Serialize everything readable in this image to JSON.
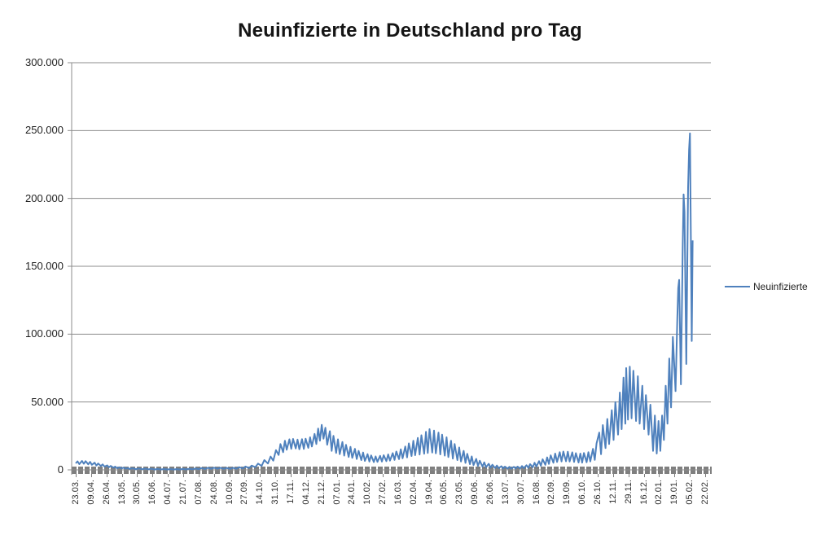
{
  "title": "Neuinfizierte in Deutschland pro Tag",
  "legend": {
    "label": "Neuinfizierte"
  },
  "chart_data": {
    "type": "line",
    "title": "Neuinfizierte in Deutschland pro Tag",
    "xlabel": "",
    "ylabel": "",
    "grid": "horizontal",
    "legend_position": "right",
    "series_name": "Neuinfizierte",
    "series_color": "#4F81BD",
    "gridline_color": "#8C8C8C",
    "axis_color": "#8C8C8C",
    "tick_band_color": "#7f7f7f",
    "ylim": [
      0,
      300000
    ],
    "y_tick_step": 50000,
    "y_tick_labels": [
      "300.000",
      "250.000",
      "200.000",
      "150.000",
      "100.000",
      "50.000",
      "0"
    ],
    "x_tick_labels": [
      "23.03.",
      "09.04.",
      "26.04.",
      "13.05.",
      "30.05.",
      "16.06.",
      "04.07.",
      "21.07.",
      "07.08.",
      "24.08.",
      "10.09.",
      "27.09.",
      "14.10.",
      "31.10.",
      "17.11.",
      "04.12.",
      "21.12.",
      "07.01.",
      "24.01.",
      "10.02.",
      "27.02.",
      "16.03.",
      "02.04.",
      "19.04.",
      "06.05.",
      "23.05.",
      "09.06.",
      "26.06.",
      "13.07.",
      "30.07.",
      "16.08.",
      "02.09.",
      "19.09.",
      "06.10.",
      "26.10.",
      "12.11.",
      "29.11.",
      "16.12.",
      "02.01.",
      "19.01.",
      "05.02.",
      "22.02."
    ],
    "x_label_interval_days": 17,
    "x_range_days": [
      0,
      701
    ],
    "points_format": "[day_index_from_23.03.2020, new_infections]",
    "points": [
      [
        0,
        4800
      ],
      [
        2,
        6300
      ],
      [
        4,
        4200
      ],
      [
        7,
        6600
      ],
      [
        9,
        4500
      ],
      [
        11,
        6400
      ],
      [
        14,
        4100
      ],
      [
        16,
        5900
      ],
      [
        18,
        3700
      ],
      [
        21,
        5300
      ],
      [
        23,
        3200
      ],
      [
        25,
        4700
      ],
      [
        28,
        2800
      ],
      [
        30,
        4000
      ],
      [
        32,
        2400
      ],
      [
        35,
        3300
      ],
      [
        37,
        1900
      ],
      [
        39,
        2900
      ],
      [
        42,
        1600
      ],
      [
        44,
        2400
      ],
      [
        46,
        1200
      ],
      [
        49,
        1900
      ],
      [
        51,
        950
      ],
      [
        53,
        1600
      ],
      [
        56,
        850
      ],
      [
        58,
        1350
      ],
      [
        60,
        650
      ],
      [
        63,
        1150
      ],
      [
        67,
        550
      ],
      [
        70,
        1000
      ],
      [
        74,
        480
      ],
      [
        77,
        880
      ],
      [
        81,
        420
      ],
      [
        84,
        800
      ],
      [
        88,
        330
      ],
      [
        91,
        680
      ],
      [
        95,
        320
      ],
      [
        98,
        620
      ],
      [
        102,
        280
      ],
      [
        105,
        540
      ],
      [
        109,
        280
      ],
      [
        112,
        560
      ],
      [
        116,
        330
      ],
      [
        119,
        640
      ],
      [
        123,
        390
      ],
      [
        126,
        780
      ],
      [
        130,
        450
      ],
      [
        133,
        980
      ],
      [
        137,
        560
      ],
      [
        140,
        1300
      ],
      [
        144,
        680
      ],
      [
        147,
        1500
      ],
      [
        151,
        760
      ],
      [
        154,
        1580
      ],
      [
        158,
        820
      ],
      [
        161,
        1500
      ],
      [
        165,
        760
      ],
      [
        168,
        1420
      ],
      [
        172,
        720
      ],
      [
        175,
        1520
      ],
      [
        179,
        830
      ],
      [
        182,
        2000
      ],
      [
        186,
        1050
      ],
      [
        189,
        2450
      ],
      [
        193,
        1400
      ],
      [
        196,
        3100
      ],
      [
        200,
        2000
      ],
      [
        203,
        4600
      ],
      [
        207,
        2900
      ],
      [
        210,
        7200
      ],
      [
        214,
        4700
      ],
      [
        217,
        9800
      ],
      [
        220,
        6800
      ],
      [
        223,
        14500
      ],
      [
        226,
        11000
      ],
      [
        228,
        19000
      ],
      [
        231,
        13000
      ],
      [
        233,
        21500
      ],
      [
        235,
        14800
      ],
      [
        238,
        22500
      ],
      [
        240,
        15500
      ],
      [
        242,
        22800
      ],
      [
        245,
        15800
      ],
      [
        247,
        22300
      ],
      [
        249,
        15200
      ],
      [
        252,
        22600
      ],
      [
        254,
        15400
      ],
      [
        256,
        23000
      ],
      [
        259,
        16200
      ],
      [
        261,
        24000
      ],
      [
        263,
        17200
      ],
      [
        266,
        26500
      ],
      [
        268,
        19000
      ],
      [
        270,
        30500
      ],
      [
        272,
        21500
      ],
      [
        274,
        33200
      ],
      [
        276,
        23000
      ],
      [
        278,
        31000
      ],
      [
        280,
        18500
      ],
      [
        283,
        28500
      ],
      [
        285,
        14000
      ],
      [
        287,
        25000
      ],
      [
        290,
        12500
      ],
      [
        292,
        22500
      ],
      [
        294,
        11500
      ],
      [
        297,
        20500
      ],
      [
        299,
        10500
      ],
      [
        301,
        18500
      ],
      [
        304,
        9500
      ],
      [
        306,
        17000
      ],
      [
        308,
        8800
      ],
      [
        311,
        15500
      ],
      [
        313,
        8000
      ],
      [
        315,
        14000
      ],
      [
        318,
        7200
      ],
      [
        320,
        12800
      ],
      [
        322,
        6600
      ],
      [
        325,
        11600
      ],
      [
        327,
        6100
      ],
      [
        329,
        10600
      ],
      [
        332,
        5700
      ],
      [
        334,
        9900
      ],
      [
        336,
        5900
      ],
      [
        339,
        10300
      ],
      [
        341,
        6100
      ],
      [
        343,
        10800
      ],
      [
        346,
        6400
      ],
      [
        348,
        11400
      ],
      [
        350,
        6800
      ],
      [
        353,
        12300
      ],
      [
        355,
        7300
      ],
      [
        357,
        13500
      ],
      [
        360,
        7900
      ],
      [
        362,
        15200
      ],
      [
        364,
        8500
      ],
      [
        367,
        17200
      ],
      [
        369,
        9200
      ],
      [
        371,
        19500
      ],
      [
        374,
        10200
      ],
      [
        376,
        21500
      ],
      [
        378,
        10800
      ],
      [
        381,
        23500
      ],
      [
        383,
        11300
      ],
      [
        385,
        25500
      ],
      [
        388,
        11900
      ],
      [
        390,
        28000
      ],
      [
        392,
        12400
      ],
      [
        394,
        30000
      ],
      [
        397,
        12700
      ],
      [
        399,
        29000
      ],
      [
        401,
        12200
      ],
      [
        404,
        27500
      ],
      [
        406,
        11400
      ],
      [
        408,
        26000
      ],
      [
        411,
        10500
      ],
      [
        413,
        24000
      ],
      [
        415,
        9400
      ],
      [
        418,
        21500
      ],
      [
        420,
        8300
      ],
      [
        422,
        19000
      ],
      [
        425,
        7200
      ],
      [
        427,
        16500
      ],
      [
        429,
        6100
      ],
      [
        432,
        14000
      ],
      [
        434,
        5100
      ],
      [
        436,
        11800
      ],
      [
        439,
        4200
      ],
      [
        441,
        9900
      ],
      [
        443,
        3500
      ],
      [
        446,
        8100
      ],
      [
        448,
        2900
      ],
      [
        450,
        6700
      ],
      [
        453,
        2400
      ],
      [
        455,
        5500
      ],
      [
        457,
        2000
      ],
      [
        460,
        4500
      ],
      [
        462,
        1700
      ],
      [
        464,
        3800
      ],
      [
        467,
        1400
      ],
      [
        469,
        3200
      ],
      [
        471,
        1200
      ],
      [
        474,
        2700
      ],
      [
        476,
        1050
      ],
      [
        478,
        2400
      ],
      [
        481,
        950
      ],
      [
        483,
        2200
      ],
      [
        485,
        900
      ],
      [
        488,
        2200
      ],
      [
        490,
        950
      ],
      [
        492,
        2400
      ],
      [
        495,
        1050
      ],
      [
        497,
        2800
      ],
      [
        499,
        1250
      ],
      [
        502,
        3400
      ],
      [
        504,
        1550
      ],
      [
        506,
        4200
      ],
      [
        509,
        1950
      ],
      [
        511,
        5200
      ],
      [
        513,
        2450
      ],
      [
        516,
        6400
      ],
      [
        518,
        3000
      ],
      [
        520,
        7800
      ],
      [
        523,
        3700
      ],
      [
        525,
        9200
      ],
      [
        527,
        4400
      ],
      [
        529,
        10700
      ],
      [
        532,
        5200
      ],
      [
        534,
        12000
      ],
      [
        536,
        5800
      ],
      [
        539,
        13000
      ],
      [
        541,
        6200
      ],
      [
        543,
        13500
      ],
      [
        546,
        6300
      ],
      [
        548,
        13400
      ],
      [
        550,
        6100
      ],
      [
        553,
        12900
      ],
      [
        555,
        5800
      ],
      [
        557,
        12300
      ],
      [
        560,
        5400
      ],
      [
        562,
        12000
      ],
      [
        564,
        5300
      ],
      [
        566,
        12400
      ],
      [
        569,
        5600
      ],
      [
        571,
        13000
      ],
      [
        573,
        6200
      ],
      [
        576,
        15500
      ],
      [
        578,
        7300
      ],
      [
        580,
        19500
      ],
      [
        583,
        27500
      ],
      [
        585,
        11500
      ],
      [
        587,
        33000
      ],
      [
        590,
        16000
      ],
      [
        592,
        37500
      ],
      [
        594,
        19000
      ],
      [
        597,
        44000
      ],
      [
        599,
        22000
      ],
      [
        601,
        50000
      ],
      [
        604,
        26000
      ],
      [
        606,
        57000
      ],
      [
        608,
        30000
      ],
      [
        610,
        68000
      ],
      [
        612,
        34000
      ],
      [
        613,
        75000
      ],
      [
        615,
        37000
      ],
      [
        617,
        76000
      ],
      [
        619,
        38000
      ],
      [
        621,
        73000
      ],
      [
        624,
        36000
      ],
      [
        626,
        69000
      ],
      [
        628,
        34000
      ],
      [
        631,
        62000
      ],
      [
        633,
        30000
      ],
      [
        635,
        55000
      ],
      [
        638,
        26000
      ],
      [
        640,
        48000
      ],
      [
        643,
        14000
      ],
      [
        645,
        40000
      ],
      [
        647,
        12000
      ],
      [
        649,
        36000
      ],
      [
        651,
        14000
      ],
      [
        653,
        40000
      ],
      [
        655,
        22000
      ],
      [
        657,
        62000
      ],
      [
        659,
        34000
      ],
      [
        661,
        82000
      ],
      [
        663,
        46000
      ],
      [
        665,
        98000
      ],
      [
        668,
        58000
      ],
      [
        670,
        112000
      ],
      [
        671,
        134000
      ],
      [
        672,
        140000
      ],
      [
        674,
        63000
      ],
      [
        676,
        164000
      ],
      [
        677,
        203000
      ],
      [
        678,
        190000
      ],
      [
        680,
        78000
      ],
      [
        682,
        208000
      ],
      [
        683,
        236000
      ],
      [
        684,
        248000
      ],
      [
        686,
        95000
      ],
      [
        687,
        169000
      ]
    ]
  }
}
